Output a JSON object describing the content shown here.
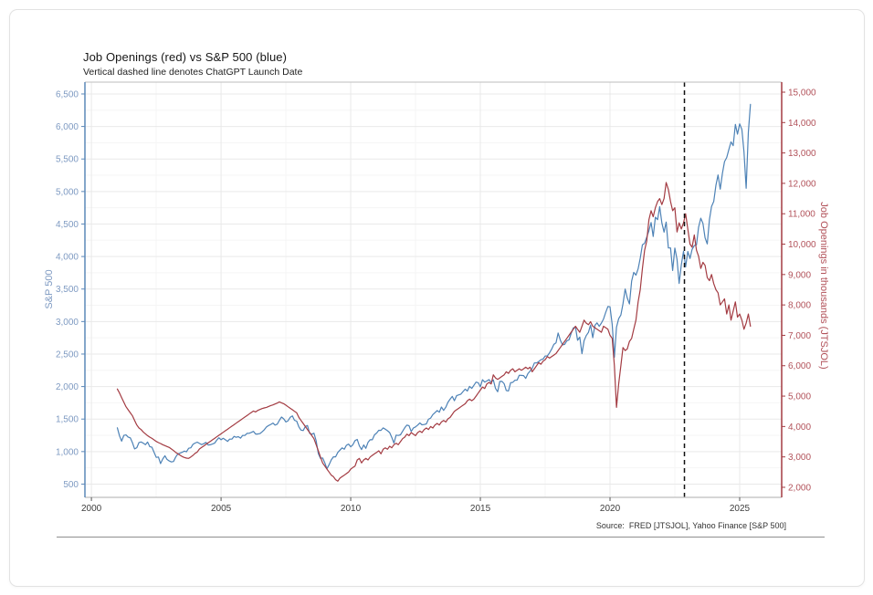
{
  "header": {
    "title": "Job Openings (red) vs S&P 500 (blue)",
    "subtitle": "Vertical dashed line denotes ChatGPT Launch Date"
  },
  "footer": {
    "source": "Source:  FRED [JTSJOL], Yahoo Finance [S&P 500]"
  },
  "colors": {
    "sp_line": "#4d82b6",
    "sp_label": "#7e9ac2",
    "sp_spine": "#5c88b8",
    "jo_line": "#a33b42",
    "jo_label": "#b2525a",
    "jo_spine": "#a33b42",
    "grid_major": "#e9e9e9",
    "grid_minor": "#f5f5f5",
    "frame_gray": "#bdbdbd",
    "x_label": "#3d3d3d",
    "annotation": "#111111"
  },
  "chart_data": {
    "type": "line",
    "title": "Job Openings (red) vs S&P 500 (blue)",
    "subtitle": "Vertical dashed line denotes ChatGPT Launch Date",
    "source": "Source:  FRED [JTSJOL], Yahoo Finance [S&P 500]",
    "legend_position": "none",
    "grid": true,
    "x_axis": {
      "label": "",
      "ticks": [
        2000,
        2005,
        2010,
        2015,
        2020,
        2025
      ],
      "minor_ticks": [
        2002.5,
        2007.5,
        2012.5,
        2017.5,
        2022.5
      ],
      "domain": [
        1999.75,
        2026.62
      ]
    },
    "left_axis": {
      "label": "S&P 500",
      "ticks": [
        500,
        1000,
        1500,
        2000,
        2500,
        3000,
        3500,
        4000,
        4500,
        5000,
        5500,
        6000,
        6500
      ],
      "domain": [
        296,
        6682
      ]
    },
    "right_axis": {
      "label": "Job Openings in thousands (JTSJOL)",
      "ticks": [
        2000,
        3000,
        4000,
        5000,
        6000,
        7000,
        8000,
        9000,
        10000,
        11000,
        12000,
        13000,
        14000,
        15000
      ],
      "domain": [
        1669,
        15330
      ]
    },
    "annotation": {
      "name": "chatgpt-launch-line",
      "year": 2022.87,
      "style": "dashed"
    },
    "series": [
      {
        "name": "S&P 500",
        "axis": "left",
        "color": "#4d82b6",
        "start_year": 2001,
        "cadence": "monthly",
        "values": [
          1366,
          1240,
          1160,
          1249,
          1256,
          1224,
          1211,
          1134,
          1041,
          1060,
          1139,
          1148,
          1130,
          1107,
          1147,
          1077,
          1067,
          990,
          911,
          916,
          815,
          886,
          936,
          880,
          856,
          841,
          848,
          917,
          964,
          975,
          990,
          1008,
          996,
          1051,
          1058,
          1112,
          1131,
          1145,
          1126,
          1107,
          1121,
          1141,
          1102,
          1104,
          1115,
          1130,
          1174,
          1212,
          1181,
          1204,
          1181,
          1157,
          1192,
          1191,
          1234,
          1220,
          1229,
          1207,
          1249,
          1248,
          1280,
          1281,
          1295,
          1311,
          1270,
          1270,
          1277,
          1304,
          1336,
          1378,
          1401,
          1418,
          1438,
          1407,
          1421,
          1482,
          1531,
          1503,
          1455,
          1474,
          1527,
          1549,
          1481,
          1468,
          1379,
          1331,
          1323,
          1386,
          1400,
          1280,
          1267,
          1283,
          1166,
          969,
          896,
          903,
          826,
          735,
          798,
          873,
          919,
          919,
          987,
          1021,
          1057,
          1036,
          1096,
          1115,
          1074,
          1104,
          1169,
          1187,
          1089,
          1031,
          1102,
          1049,
          1141,
          1183,
          1181,
          1258,
          1286,
          1327,
          1326,
          1364,
          1345,
          1321,
          1292,
          1219,
          1131,
          1253,
          1247,
          1258,
          1312,
          1366,
          1408,
          1398,
          1310,
          1362,
          1379,
          1407,
          1441,
          1412,
          1416,
          1426,
          1498,
          1515,
          1569,
          1598,
          1631,
          1606,
          1686,
          1633,
          1682,
          1757,
          1806,
          1848,
          1783,
          1859,
          1872,
          1884,
          1924,
          1960,
          1931,
          2003,
          1972,
          2018,
          2068,
          2059,
          1995,
          2105,
          2068,
          2086,
          2107,
          2063,
          2104,
          1972,
          1920,
          2079,
          2080,
          2044,
          1940,
          1932,
          2060,
          2065,
          2097,
          2099,
          2174,
          2171,
          2168,
          2126,
          2199,
          2239,
          2279,
          2364,
          2363,
          2384,
          2412,
          2423,
          2470,
          2472,
          2519,
          2575,
          2648,
          2674,
          2824,
          2714,
          2641,
          2648,
          2705,
          2718,
          2816,
          2902,
          2914,
          2712,
          2760,
          2507,
          2704,
          2784,
          2834,
          2946,
          2752,
          2942,
          2980,
          2926,
          2977,
          3038,
          3141,
          3231,
          3226,
          2954,
          2450,
          2912,
          3044,
          3100,
          3271,
          3500,
          3363,
          3270,
          3622,
          3756,
          3714,
          3811,
          3973,
          4181,
          4204,
          4298,
          4395,
          4523,
          4308,
          4605,
          4567,
          4766,
          4516,
          4374,
          4530,
          4132,
          4132,
          3785,
          4130,
          3955,
          3586,
          3872,
          4080,
          3840,
          4077,
          3970,
          4109,
          4169,
          4180,
          4450,
          4589,
          4508,
          4288,
          4194,
          4568,
          4770,
          4846,
          5096,
          5254,
          5036,
          5278,
          5460,
          5522,
          5648,
          5762,
          5705,
          6032,
          5882,
          6041,
          5955,
          5612,
          5050,
          5912,
          6340
        ]
      },
      {
        "name": "Job Openings (JTSJOL)",
        "axis": "right",
        "color": "#a33b42",
        "start_year": 2001,
        "cadence": "monthly",
        "values": [
          5234,
          5100,
          4950,
          4800,
          4650,
          4550,
          4450,
          4350,
          4200,
          4050,
          3950,
          3900,
          3820,
          3760,
          3700,
          3650,
          3610,
          3560,
          3510,
          3470,
          3440,
          3400,
          3370,
          3340,
          3310,
          3260,
          3210,
          3150,
          3100,
          3060,
          3010,
          2980,
          2960,
          2950,
          3000,
          3050,
          3120,
          3160,
          3260,
          3310,
          3360,
          3410,
          3460,
          3510,
          3560,
          3610,
          3660,
          3710,
          3760,
          3810,
          3860,
          3910,
          3960,
          4010,
          4060,
          4110,
          4160,
          4210,
          4260,
          4310,
          4360,
          4410,
          4460,
          4510,
          4480,
          4530,
          4560,
          4590,
          4610,
          4630,
          4660,
          4690,
          4710,
          4740,
          4770,
          4810,
          4780,
          4750,
          4700,
          4650,
          4600,
          4550,
          4500,
          4450,
          4300,
          4200,
          4100,
          4000,
          3900,
          3800,
          3700,
          3600,
          3400,
          3200,
          3000,
          2800,
          2700,
          2600,
          2500,
          2400,
          2350,
          2250,
          2200,
          2300,
          2350,
          2400,
          2450,
          2500,
          2600,
          2650,
          2700,
          2900,
          2950,
          2800,
          2900,
          2950,
          2900,
          3000,
          3050,
          3100,
          3150,
          3200,
          3100,
          3250,
          3300,
          3250,
          3350,
          3300,
          3400,
          3450,
          3400,
          3500,
          3600,
          3650,
          3750,
          3700,
          3800,
          3750,
          3700,
          3800,
          3850,
          3800,
          3900,
          3950,
          3900,
          4000,
          3950,
          4050,
          4100,
          4050,
          4150,
          4200,
          4150,
          4250,
          4300,
          4400,
          4500,
          4550,
          4600,
          4650,
          4700,
          4750,
          4850,
          4900,
          4850,
          4900,
          5000,
          5100,
          5200,
          5300,
          5250,
          5400,
          5450,
          5400,
          5700,
          5600,
          5550,
          5600,
          5650,
          5700,
          5800,
          5750,
          5850,
          5900,
          5800,
          5850,
          5900,
          5850,
          5900,
          5950,
          5900,
          5950,
          5800,
          5900,
          6000,
          6100,
          6050,
          6150,
          6200,
          6300,
          6250,
          6300,
          6350,
          6400,
          6500,
          6600,
          6700,
          6800,
          6900,
          7000,
          7100,
          7200,
          7300,
          7200,
          7100,
          7300,
          7500,
          7400,
          7350,
          7450,
          7300,
          7250,
          7200,
          7150,
          7100,
          7300,
          7250,
          7200,
          7000,
          6900,
          6000,
          4630,
          5400,
          6000,
          6600,
          6500,
          6550,
          6800,
          6900,
          7200,
          7500,
          8100,
          8500,
          9200,
          9800,
          10100,
          10800,
          11100,
          10900,
          11200,
          11400,
          11500,
          11300,
          11500,
          12027,
          11800,
          11400,
          11100,
          11200,
          10400,
          10700,
          10500,
          10700,
          11000,
          10500,
          10000,
          9900,
          10300,
          9800,
          9600,
          9200,
          9400,
          9300,
          8900,
          8800,
          9000,
          8700,
          8500,
          8400,
          8000,
          8100,
          8200,
          7700,
          8000,
          7500,
          7800,
          8100,
          7600,
          7700,
          7500,
          7200,
          7400,
          7700,
          7300
        ]
      }
    ]
  }
}
